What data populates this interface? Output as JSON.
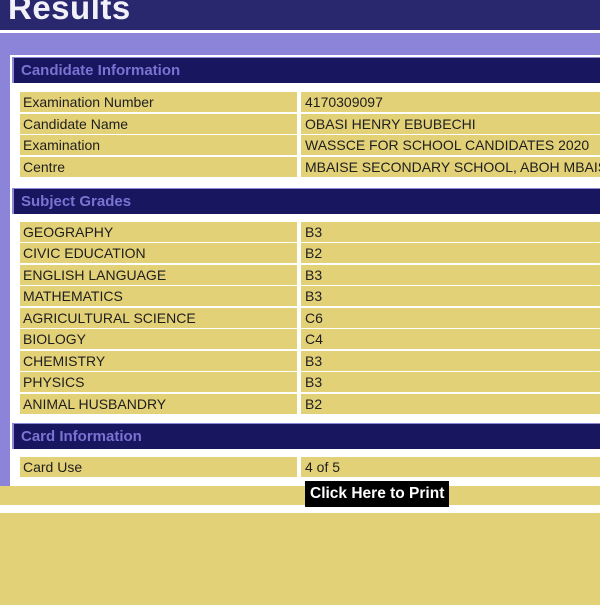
{
  "header": {
    "title": "Results"
  },
  "sections": {
    "candidate": {
      "title": "Candidate Information",
      "rows": [
        {
          "label": "Examination Number",
          "value": "4170309097"
        },
        {
          "label": "Candidate Name",
          "value": "OBASI HENRY EBUBECHI"
        },
        {
          "label": "Examination",
          "value": "WASSCE FOR SCHOOL CANDIDATES 2020"
        },
        {
          "label": "Centre",
          "value": "MBAISE SECONDARY SCHOOL, ABOH MBAISE"
        }
      ]
    },
    "grades": {
      "title": "Subject Grades",
      "rows": [
        {
          "label": "GEOGRAPHY",
          "value": "B3"
        },
        {
          "label": "CIVIC EDUCATION",
          "value": "B2"
        },
        {
          "label": "ENGLISH LANGUAGE",
          "value": "B3"
        },
        {
          "label": "MATHEMATICS",
          "value": "B3"
        },
        {
          "label": "AGRICULTURAL SCIENCE",
          "value": "C6"
        },
        {
          "label": "BIOLOGY",
          "value": "C4"
        },
        {
          "label": "CHEMISTRY",
          "value": "B3"
        },
        {
          "label": "PHYSICS",
          "value": "B3"
        },
        {
          "label": "ANIMAL HUSBANDRY",
          "value": "B2"
        }
      ]
    },
    "card": {
      "title": "Card Information",
      "rows": [
        {
          "label": "Card Use",
          "value": "4 of 5"
        }
      ]
    }
  },
  "footer": {
    "print_label": "Click Here to Print"
  },
  "colors": {
    "topbar_navy": "#29286f",
    "section_navy": "#17165e",
    "section_title_text": "#7a73d2",
    "lilac_frame": "#8b84d8",
    "cell_khaki": "#e3d178",
    "print_link_bg": "#000000",
    "print_link_text": "#ffffff"
  }
}
